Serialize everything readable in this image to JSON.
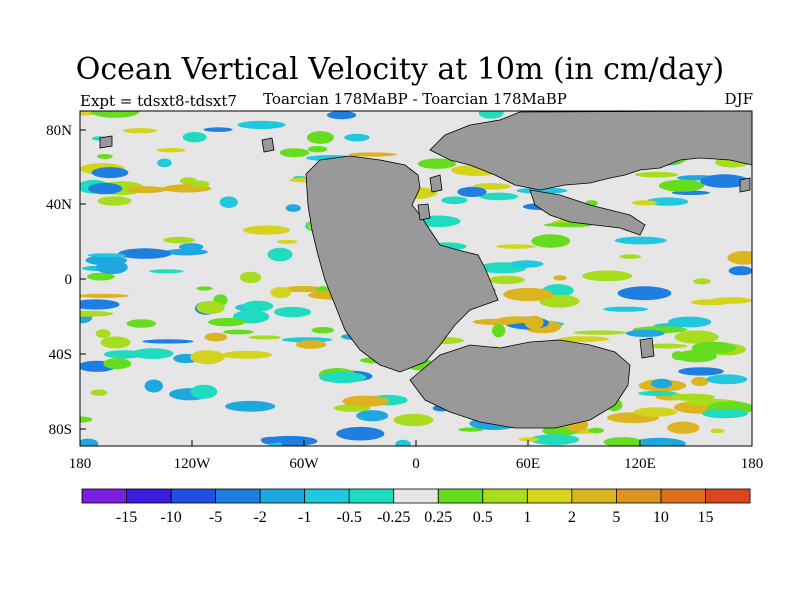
{
  "title": "Ocean Vertical Velocity at 10m (in cm/day)",
  "experiment": "Expt = tdsxt8-tdsxt7",
  "subtitle": "Toarcian 178MaBP - Toarcian 178MaBP",
  "season": "DJF",
  "map": {
    "land_color": "#999999",
    "ocean_neutral_color": "#e6e6e6",
    "lat_ticks": [
      "80N",
      "40N",
      "0",
      "40S",
      "80S"
    ],
    "lon_ticks": [
      "180",
      "120W",
      "60W",
      "0",
      "60E",
      "120E",
      "180"
    ]
  },
  "colorbar": {
    "colors": [
      "#7a1fe0",
      "#3a1fe0",
      "#1f4fe0",
      "#1f7fe0",
      "#1fa8e0",
      "#1fc8dc",
      "#1fdcc0",
      "#e6e6e6",
      "#66dc1f",
      "#a8dc1f",
      "#d4d41f",
      "#dcb41f",
      "#dc961f",
      "#dc6e1f",
      "#dc461f"
    ],
    "labels": [
      "-15",
      "-10",
      "-5",
      "-2",
      "-1",
      "-0.5",
      "-0.25",
      "0.25",
      "0.5",
      "1",
      "2",
      "5",
      "10",
      "15"
    ]
  }
}
